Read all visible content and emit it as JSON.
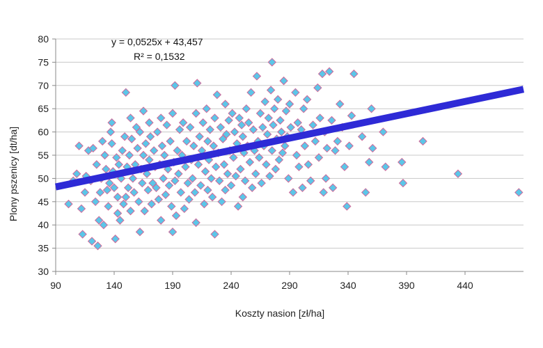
{
  "chart_data": {
    "type": "scatter",
    "xlabel": "Koszty nasion  [zł/ha]",
    "ylabel": "Plony pszenicy  [dt/ha]",
    "xlim": [
      90,
      490
    ],
    "ylim": [
      30,
      80
    ],
    "x_ticks": [
      90,
      140,
      190,
      240,
      290,
      340,
      390,
      440
    ],
    "y_ticks": [
      30,
      35,
      40,
      45,
      50,
      55,
      60,
      65,
      70,
      75,
      80
    ],
    "grid": "horizontal",
    "marker": "diamond",
    "marker_color": "#5bc6e8",
    "marker_edge_color": "#d06a9a",
    "trendline": {
      "equation_label": "y = 0,0525x + 43,457",
      "r2_label": "R² = 0,1532",
      "slope": 0.0525,
      "intercept": 43.457,
      "x_range": [
        90,
        490
      ],
      "color": "#2e2ad6"
    },
    "points": [
      [
        101,
        44.5
      ],
      [
        105,
        49.5
      ],
      [
        108,
        51
      ],
      [
        110,
        57
      ],
      [
        112,
        43.5
      ],
      [
        113,
        38
      ],
      [
        115,
        47
      ],
      [
        116,
        50.5
      ],
      [
        118,
        56
      ],
      [
        120,
        49.5
      ],
      [
        121,
        36.5
      ],
      [
        122,
        56.5
      ],
      [
        124,
        45
      ],
      [
        125,
        53
      ],
      [
        126,
        35.5
      ],
      [
        127,
        41
      ],
      [
        128,
        47
      ],
      [
        129,
        50
      ],
      [
        130,
        58
      ],
      [
        131,
        40
      ],
      [
        132,
        55
      ],
      [
        133,
        52
      ],
      [
        134,
        47.5
      ],
      [
        135,
        44
      ],
      [
        136,
        49
      ],
      [
        137,
        60
      ],
      [
        138,
        62
      ],
      [
        138,
        57.5
      ],
      [
        139,
        51.5
      ],
      [
        140,
        48
      ],
      [
        141,
        37
      ],
      [
        142,
        54.5
      ],
      [
        143,
        46
      ],
      [
        143,
        42.5
      ],
      [
        144,
        53
      ],
      [
        145,
        41
      ],
      [
        146,
        50
      ],
      [
        147,
        56
      ],
      [
        148,
        44.5
      ],
      [
        149,
        59
      ],
      [
        150,
        68.5
      ],
      [
        150,
        46
      ],
      [
        151,
        52.5
      ],
      [
        152,
        48
      ],
      [
        153,
        55
      ],
      [
        154,
        63
      ],
      [
        154,
        43
      ],
      [
        155,
        58.5
      ],
      [
        156,
        50
      ],
      [
        157,
        47
      ],
      [
        158,
        53
      ],
      [
        159,
        61
      ],
      [
        160,
        56.5
      ],
      [
        161,
        45
      ],
      [
        162,
        38.5
      ],
      [
        162,
        60
      ],
      [
        163,
        52
      ],
      [
        164,
        49
      ],
      [
        165,
        64.5
      ],
      [
        165,
        55
      ],
      [
        166,
        43
      ],
      [
        167,
        57.5
      ],
      [
        168,
        51
      ],
      [
        169,
        47.5
      ],
      [
        170,
        62
      ],
      [
        170,
        54
      ],
      [
        171,
        59
      ],
      [
        172,
        44.5
      ],
      [
        173,
        49
      ],
      [
        174,
        56
      ],
      [
        175,
        52.5
      ],
      [
        176,
        48
      ],
      [
        177,
        60
      ],
      [
        178,
        45.5
      ],
      [
        179,
        53
      ],
      [
        180,
        63
      ],
      [
        180,
        41
      ],
      [
        181,
        57
      ],
      [
        182,
        50
      ],
      [
        183,
        55
      ],
      [
        184,
        46.5
      ],
      [
        185,
        61.5
      ],
      [
        186,
        52
      ],
      [
        187,
        48.5
      ],
      [
        188,
        58
      ],
      [
        189,
        44
      ],
      [
        190,
        64
      ],
      [
        190,
        38.5
      ],
      [
        191,
        53.5
      ],
      [
        192,
        70
      ],
      [
        192,
        49.5
      ],
      [
        193,
        42
      ],
      [
        194,
        56
      ],
      [
        195,
        51
      ],
      [
        196,
        60.5
      ],
      [
        197,
        47
      ],
      [
        198,
        55
      ],
      [
        199,
        62
      ],
      [
        200,
        43.5
      ],
      [
        201,
        52.5
      ],
      [
        202,
        58
      ],
      [
        203,
        49
      ],
      [
        204,
        45.5
      ],
      [
        205,
        61
      ],
      [
        206,
        54
      ],
      [
        207,
        50
      ],
      [
        208,
        57
      ],
      [
        209,
        47
      ],
      [
        210,
        64
      ],
      [
        210,
        40.5
      ],
      [
        211,
        70.5
      ],
      [
        212,
        53
      ],
      [
        213,
        59
      ],
      [
        214,
        48.5
      ],
      [
        215,
        56
      ],
      [
        216,
        62
      ],
      [
        217,
        44.5
      ],
      [
        218,
        51.5
      ],
      [
        219,
        65
      ],
      [
        220,
        58
      ],
      [
        220,
        47.5
      ],
      [
        221,
        54
      ],
      [
        222,
        60.5
      ],
      [
        223,
        50
      ],
      [
        224,
        46
      ],
      [
        225,
        57
      ],
      [
        226,
        38
      ],
      [
        226,
        63
      ],
      [
        227,
        52.5
      ],
      [
        228,
        68
      ],
      [
        229,
        55.5
      ],
      [
        230,
        49.5
      ],
      [
        231,
        61
      ],
      [
        232,
        45
      ],
      [
        233,
        58.5
      ],
      [
        234,
        53
      ],
      [
        235,
        66
      ],
      [
        235,
        47.5
      ],
      [
        236,
        59.5
      ],
      [
        237,
        51
      ],
      [
        238,
        62.5
      ],
      [
        239,
        56
      ],
      [
        240,
        48.5
      ],
      [
        241,
        64
      ],
      [
        242,
        54.5
      ],
      [
        243,
        60
      ],
      [
        244,
        50.5
      ],
      [
        245,
        57.5
      ],
      [
        246,
        44
      ],
      [
        247,
        63
      ],
      [
        248,
        52
      ],
      [
        249,
        61.5
      ],
      [
        250,
        59
      ],
      [
        250,
        46
      ],
      [
        251,
        55.5
      ],
      [
        252,
        49.5
      ],
      [
        253,
        65
      ],
      [
        254,
        57
      ],
      [
        255,
        62
      ],
      [
        256,
        53.5
      ],
      [
        257,
        68.5
      ],
      [
        258,
        48
      ],
      [
        259,
        60.5
      ],
      [
        260,
        56
      ],
      [
        261,
        51
      ],
      [
        262,
        72
      ],
      [
        263,
        58
      ],
      [
        264,
        54.5
      ],
      [
        265,
        64
      ],
      [
        266,
        49
      ],
      [
        267,
        61
      ],
      [
        268,
        57
      ],
      [
        269,
        66.5
      ],
      [
        270,
        53
      ],
      [
        271,
        59.5
      ],
      [
        272,
        63
      ],
      [
        273,
        50.5
      ],
      [
        274,
        69
      ],
      [
        275,
        75
      ],
      [
        275,
        56
      ],
      [
        276,
        61.5
      ],
      [
        277,
        65
      ],
      [
        278,
        52
      ],
      [
        279,
        58.5
      ],
      [
        280,
        67
      ],
      [
        281,
        54
      ],
      [
        282,
        62.5
      ],
      [
        283,
        60
      ],
      [
        284,
        55.5
      ],
      [
        285,
        71
      ],
      [
        286,
        57
      ],
      [
        287,
        64.5
      ],
      [
        288,
        59
      ],
      [
        289,
        50
      ],
      [
        290,
        66
      ],
      [
        291,
        61
      ],
      [
        293,
        47
      ],
      [
        295,
        68.5
      ],
      [
        296,
        55
      ],
      [
        297,
        62
      ],
      [
        298,
        52.5
      ],
      [
        300,
        60.5
      ],
      [
        301,
        48
      ],
      [
        302,
        65
      ],
      [
        303,
        57
      ],
      [
        305,
        67
      ],
      [
        306,
        53
      ],
      [
        308,
        49.5
      ],
      [
        310,
        61.5
      ],
      [
        312,
        58
      ],
      [
        314,
        69.5
      ],
      [
        315,
        54.5
      ],
      [
        316,
        63
      ],
      [
        318,
        72.5
      ],
      [
        319,
        47
      ],
      [
        320,
        60
      ],
      [
        321,
        50
      ],
      [
        322,
        56.5
      ],
      [
        324,
        73
      ],
      [
        326,
        62.5
      ],
      [
        327,
        48
      ],
      [
        329,
        56
      ],
      [
        331,
        58
      ],
      [
        333,
        66
      ],
      [
        335,
        61
      ],
      [
        337,
        52.5
      ],
      [
        339,
        44
      ],
      [
        341,
        57
      ],
      [
        343,
        63.5
      ],
      [
        345,
        72.5
      ],
      [
        352,
        59
      ],
      [
        355,
        47
      ],
      [
        358,
        53.5
      ],
      [
        360,
        65
      ],
      [
        361,
        56.5
      ],
      [
        370,
        60
      ],
      [
        372,
        52.5
      ],
      [
        386,
        53.5
      ],
      [
        387,
        49
      ],
      [
        404,
        58
      ],
      [
        434,
        51
      ],
      [
        486,
        47
      ]
    ]
  }
}
